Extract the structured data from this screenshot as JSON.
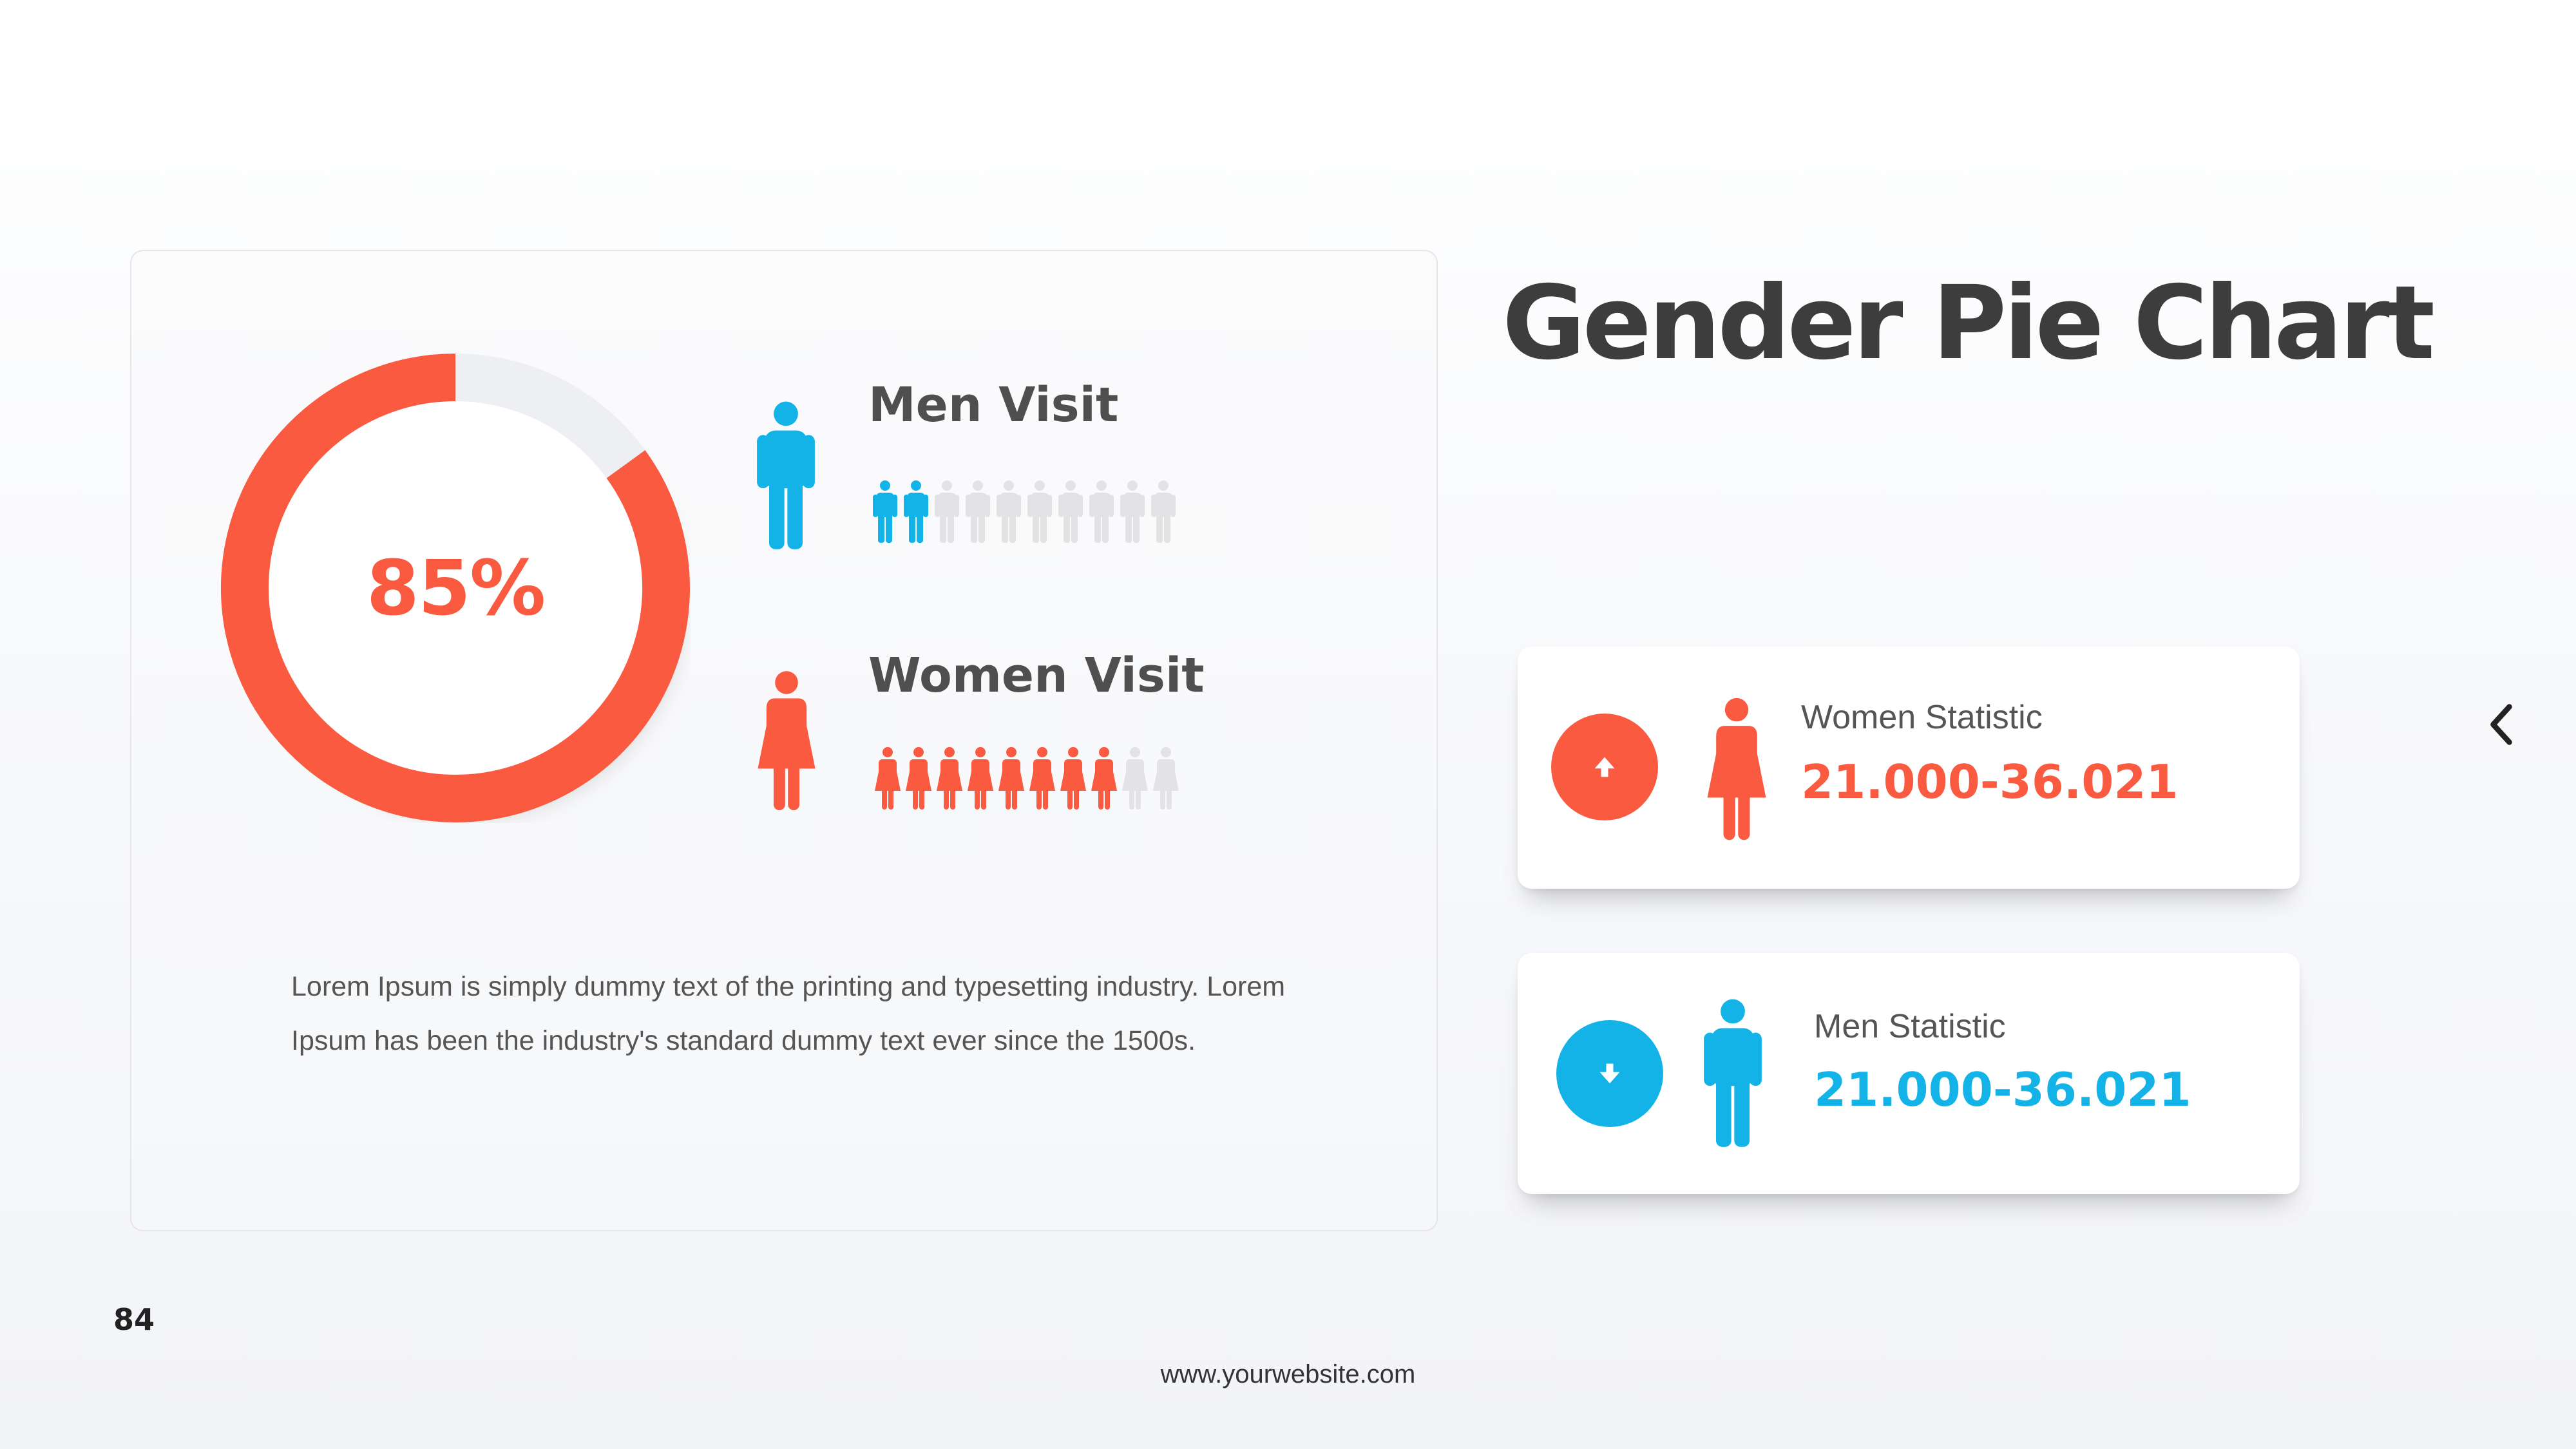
{
  "slide": {
    "title": "Gender Pie Chart",
    "page_number": "84",
    "footer_url": "www.yourwebsite.com"
  },
  "donut": {
    "label": "85%",
    "percent": 85,
    "fill_color": "#fa5a3f",
    "track_color": "#eeeff2"
  },
  "men_visit": {
    "label": "Men Visit",
    "icon": "man-icon",
    "filled": 2,
    "total": 10,
    "color": "#13b3e8"
  },
  "women_visit": {
    "label": "Women Visit",
    "icon": "woman-icon",
    "filled": 8,
    "total": 10,
    "color": "#fa5a3f"
  },
  "description": "Lorem Ipsum is simply dummy text of the printing and typesetting industry. Lorem Ipsum has been the industry's standard dummy text ever since the 1500s.",
  "stats": {
    "women": {
      "label": "Women Statistic",
      "value": "21.000-36.021",
      "icon": "arrow-up-icon",
      "color": "#fa5a3f"
    },
    "men": {
      "label": "Men Statistic",
      "value": "21.000-36.021",
      "icon": "arrow-down-icon",
      "color": "#13b3e8"
    }
  },
  "nav": {
    "icon": "chevron-left-icon"
  }
}
